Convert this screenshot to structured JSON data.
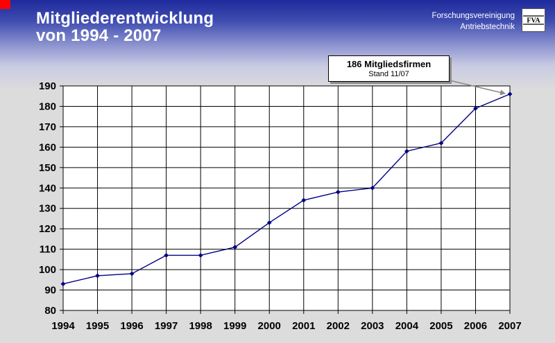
{
  "slide": {
    "title_line1": "Mitgliederentwicklung",
    "title_line2": "von 1994 - 2007",
    "org_line1": "Forschungsvereinigung",
    "org_line2": "Antriebstechnik",
    "logo_text": "FVA",
    "accent_red": "#ff0000",
    "header_blue": "#1e2a9c"
  },
  "callout": {
    "title": "186 Mitgliedsfirmen",
    "subtitle": "Stand 11/07"
  },
  "chart_data": {
    "type": "line",
    "categories": [
      "1994",
      "1995",
      "1996",
      "1997",
      "1998",
      "1999",
      "2000",
      "2001",
      "2002",
      "2003",
      "2004",
      "2005",
      "2006",
      "2007"
    ],
    "series": [
      {
        "values": [
          93,
          97,
          98,
          107,
          107,
          111,
          123,
          134,
          138,
          140,
          158,
          162,
          179,
          186
        ]
      }
    ],
    "yticks": [
      80,
      90,
      100,
      110,
      120,
      130,
      140,
      150,
      160,
      170,
      180,
      190
    ],
    "ylim": [
      80,
      190
    ],
    "grid": true,
    "line_color": "#000080",
    "plot_background": "#ffffff"
  }
}
